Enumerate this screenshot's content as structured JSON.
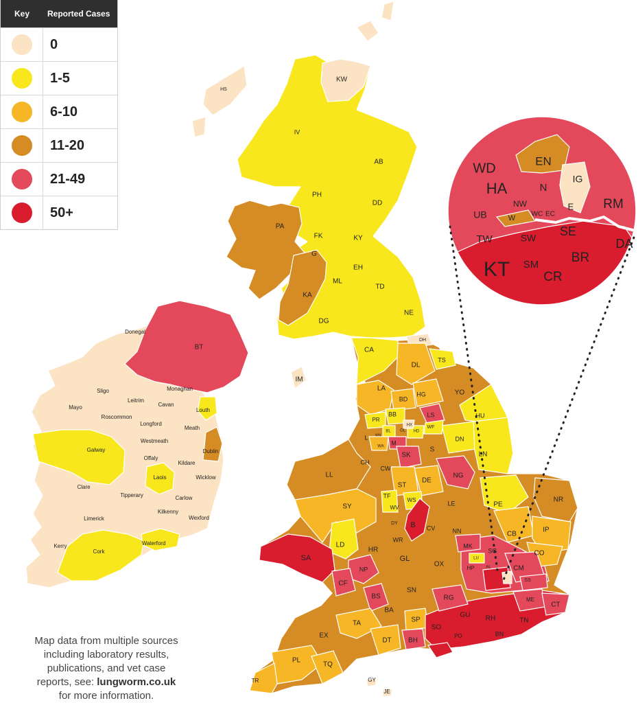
{
  "key": {
    "col_key": "Key",
    "col_cases": "Reported Cases",
    "bands": [
      {
        "label": "0",
        "color": "#fbe3c3"
      },
      {
        "label": "1-5",
        "color": "#f8e71c"
      },
      {
        "label": "6-10",
        "color": "#f7b626"
      },
      {
        "label": "11-20",
        "color": "#d68c24"
      },
      {
        "label": "21-49",
        "color": "#e3495a"
      },
      {
        "label": "50+",
        "color": "#d91d2f"
      }
    ]
  },
  "colors": {
    "b0": "#fbe3c3",
    "b1": "#f8e71c",
    "b2": "#f7b626",
    "b3": "#d68c24",
    "b4": "#e3495a",
    "b5": "#d91d2f",
    "sea": "#ffffff",
    "border": "#ffffff",
    "text": "#222222"
  },
  "note": {
    "line1": "Map data from multiple sources",
    "line2": "including laboratory results,",
    "line3": "publications, and vet case",
    "line4_prefix": "reports, see: ",
    "link": "lungworm.co.uk",
    "line5": "for more information."
  },
  "ireland_labels": [
    "Donegal",
    "Sligo",
    "Leitrim",
    "Cavan",
    "Monaghan",
    "Louth",
    "Mayo",
    "Roscommon",
    "Longford",
    "Meath",
    "Westmeath",
    "Galway",
    "Offaly",
    "Kildare",
    "Dublin",
    "Laois",
    "Wicklow",
    "Clare",
    "Tipperary",
    "Carlow",
    "Limerick",
    "Kilkenny",
    "Wexford",
    "Kerry",
    "Cork",
    "Waterford"
  ],
  "uk_labels": [
    "KW",
    "HS",
    "IV",
    "AB",
    "PH",
    "DD",
    "PA",
    "KY",
    "FK",
    "G",
    "EH",
    "ML",
    "KA",
    "TD",
    "DG",
    "NE",
    "BT",
    "IM",
    "CA",
    "DH",
    "TS",
    "DL",
    "LA",
    "YO",
    "HG",
    "BD",
    "LS",
    "BB",
    "PR",
    "HX",
    "WF",
    "OL",
    "HD",
    "HU",
    "WN",
    "BL",
    "L",
    "WA",
    "M",
    "SK",
    "S",
    "DN",
    "LN",
    "LL",
    "CH",
    "CW",
    "NG",
    "ST",
    "DE",
    "TF",
    "WS",
    "SY",
    "LE",
    "PE",
    "NR",
    "WV",
    "DY",
    "B",
    "CV",
    "NN",
    "CB",
    "IP",
    "LD",
    "WR",
    "SA",
    "HR",
    "MK",
    "SG",
    "CO",
    "NP",
    "GL",
    "OX",
    "HP",
    "AL",
    "CM",
    "LU",
    "SS",
    "CF",
    "BS",
    "SN",
    "RG",
    "ME",
    "CT",
    "BA",
    "GU",
    "RH",
    "TN",
    "TA",
    "SP",
    "SO",
    "PO",
    "BN",
    "DT",
    "BH",
    "EX",
    "PL",
    "TQ",
    "TR",
    "GY",
    "JE",
    "KT",
    "RM",
    "DA",
    "EN",
    "WD",
    "HA",
    "N",
    "IG",
    "NW",
    "W",
    "WC",
    "EC",
    "E",
    "UB",
    "TW",
    "SW",
    "SE",
    "SM",
    "BR",
    "CR"
  ]
}
